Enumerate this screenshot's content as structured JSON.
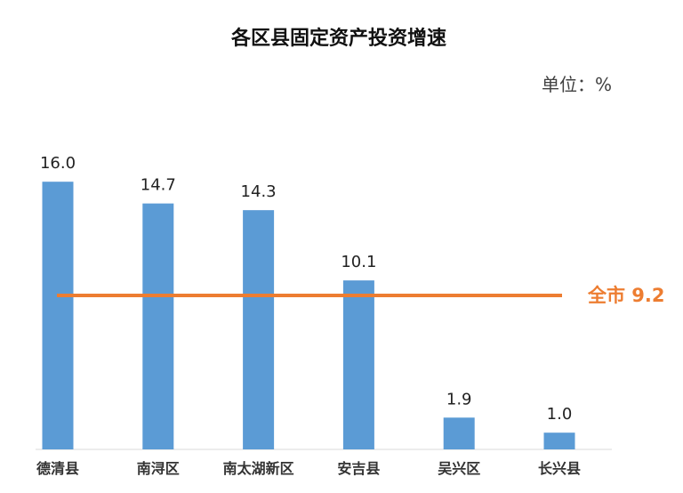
{
  "chart_data": {
    "type": "bar",
    "title": "各区县固定资产投资增速",
    "unit_label": "单位：%",
    "categories": [
      "德清县",
      "南浔区",
      "南太湖新区",
      "安吉县",
      "吴兴区",
      "长兴县"
    ],
    "values": [
      16.0,
      14.7,
      14.3,
      10.1,
      1.9,
      1.0
    ],
    "value_labels": [
      "16.0",
      "14.7",
      "14.3",
      "10.1",
      "1.9",
      "1.0"
    ],
    "reference_line": {
      "label": "全市 9.2",
      "value": 9.2,
      "color": "#ED7D31"
    },
    "bar_color": "#5B9BD5",
    "ylim": [
      0,
      17.5
    ],
    "grid": false,
    "legend": "none"
  }
}
